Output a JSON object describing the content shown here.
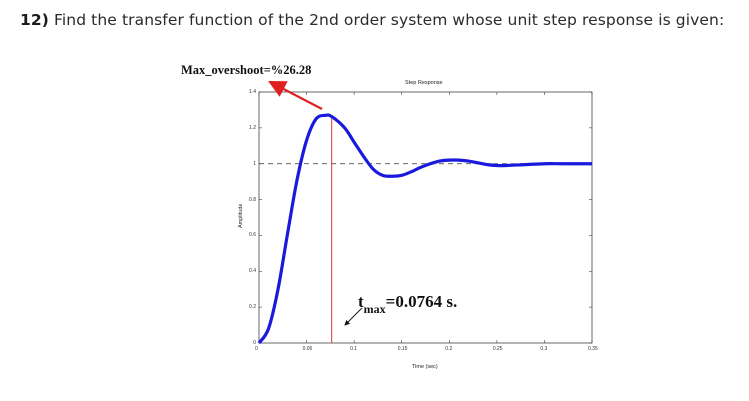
{
  "question": {
    "number": "12)",
    "text": "Find the transfer function of the 2nd order system whose unit step response is given:"
  },
  "annotations": {
    "overshoot": "Max_overshoot=%26.28",
    "tmax_t": "t",
    "tmax_sub": "max",
    "tmax_value": "=0.0764 s."
  },
  "chart_data": {
    "type": "line",
    "title": "Step Response",
    "xlabel": "Time (sec)",
    "ylabel": "Amplitude",
    "xlim": [
      0,
      0.35
    ],
    "ylim": [
      0,
      1.4
    ],
    "x_ticks": [
      "0",
      "0.05",
      "0.1",
      "0.15",
      "0.2",
      "0.25",
      "0.3",
      "0.35"
    ],
    "y_ticks": [
      "0",
      "0.2",
      "0.4",
      "0.6",
      "0.8",
      "1",
      "1.2",
      "1.4"
    ],
    "reference_line": {
      "y": 1,
      "style": "dashed"
    },
    "peak": {
      "x": 0.0764,
      "y": 1.2628
    },
    "x": [
      0,
      0.01,
      0.02,
      0.03,
      0.04,
      0.05,
      0.06,
      0.07,
      0.0764,
      0.09,
      0.1,
      0.11,
      0.12,
      0.13,
      0.14,
      0.15,
      0.16,
      0.17,
      0.18,
      0.19,
      0.2,
      0.21,
      0.22,
      0.23,
      0.24,
      0.25,
      0.26,
      0.28,
      0.3,
      0.32,
      0.35
    ],
    "y": [
      0,
      0.08,
      0.3,
      0.61,
      0.91,
      1.13,
      1.25,
      1.27,
      1.2628,
      1.2,
      1.12,
      1.04,
      0.97,
      0.935,
      0.93,
      0.935,
      0.955,
      0.98,
      1.0,
      1.015,
      1.02,
      1.02,
      1.015,
      1.005,
      0.995,
      0.99,
      0.99,
      0.995,
      1.0,
      1.0,
      1.0
    ],
    "colors": {
      "response": "#1a1adc",
      "peak_marker": "#e03030",
      "overshoot_arrow": "#e02020"
    }
  }
}
